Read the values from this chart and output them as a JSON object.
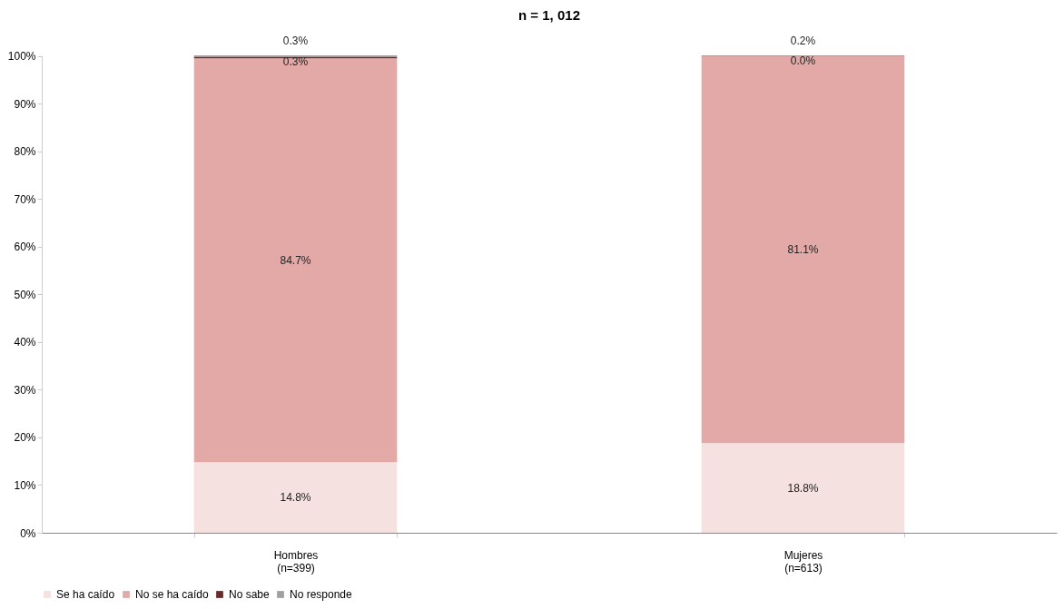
{
  "chart_data": {
    "type": "bar",
    "title": "n = 1, 012",
    "stacked": true,
    "categories": [
      "Hombres\n(n=399)",
      "Mujeres\n(n=613)"
    ],
    "series": [
      {
        "name": "Se ha caído",
        "color": "#f4e1e0",
        "values": [
          14.8,
          18.8
        ],
        "value_labels": [
          "14.8%",
          "18.8%"
        ]
      },
      {
        "name": "No se ha caído",
        "color": "#e2a9a7",
        "values": [
          84.7,
          81.1
        ],
        "value_labels": [
          "84.7%",
          "81.1%"
        ]
      },
      {
        "name": "No sabe",
        "color": "#6b2a2a",
        "values": [
          0.3,
          0.0
        ],
        "value_labels": [
          "0.3%",
          "0.0%"
        ]
      },
      {
        "name": "No responde",
        "color": "#a0a0a0",
        "values": [
          0.3,
          0.2
        ],
        "value_labels": [
          "0.3%",
          "0.2%"
        ]
      }
    ],
    "ylim": [
      0,
      100.1
    ],
    "yticks": [
      {
        "value": 0,
        "label": "0%"
      },
      {
        "value": 10,
        "label": "10%"
      },
      {
        "value": 20,
        "label": "20%"
      },
      {
        "value": 30,
        "label": "30%"
      },
      {
        "value": 40,
        "label": "40%"
      },
      {
        "value": 50,
        "label": "50%"
      },
      {
        "value": 60,
        "label": "60%"
      },
      {
        "value": 70,
        "label": "70%"
      },
      {
        "value": 80,
        "label": "80%"
      },
      {
        "value": 90,
        "label": "90%"
      },
      {
        "value": 100,
        "label": "100%"
      }
    ],
    "grid": false,
    "legend": "bottom"
  }
}
